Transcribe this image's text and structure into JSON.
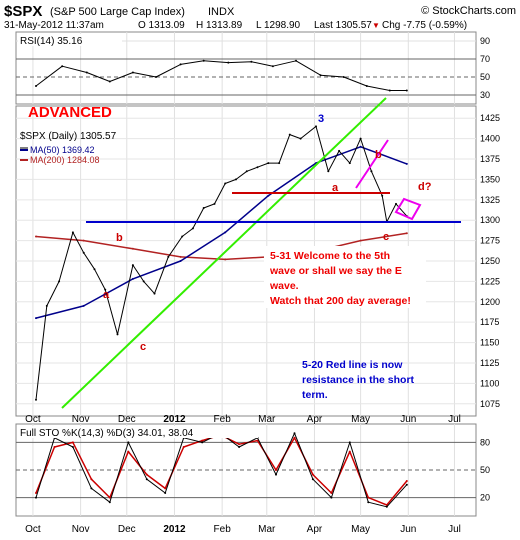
{
  "header": {
    "symbol": "$SPX",
    "name": "(S&P 500 Large Cap Index)",
    "exchange": "INDX",
    "brand": "© StockCharts.com",
    "date_time": "31-May-2012 11:37am",
    "quote": {
      "open": "O 1313.09",
      "high": "H 1313.89",
      "low": "L 1298.90",
      "last": "Last 1305.57",
      "chg": "Chg -7.75 (-0.59%)",
      "chg_arrow": "▼"
    }
  },
  "colors": {
    "price": "#000000",
    "ma50": "#00008b",
    "ma200": "#b22222",
    "trend_green": "#33ee00",
    "support_blue": "#0000cc",
    "resist_red": "#cc0000",
    "wedge_magenta": "#ee00ee",
    "sto_k": "#000000",
    "sto_d": "#cc0000",
    "rsi": "#000000"
  },
  "annotations": {
    "advanced": "ADVANCED",
    "wave_labels": [
      "a",
      "b",
      "c",
      "3",
      "a",
      "b",
      "c",
      "d?"
    ],
    "note1": [
      "5-31 Welcome to the 5th",
      "wave or shall we say the E",
      "wave.",
      "Watch that 200 day average!"
    ],
    "note2": [
      "5-20 Red line is now",
      "resistance in the short",
      "term."
    ]
  },
  "chart_data": [
    {
      "type": "line",
      "title": "RSI(14) 35.16",
      "ylim": [
        20,
        100
      ],
      "ticks": [
        90,
        70,
        50,
        30
      ],
      "reference_lines": [
        70,
        50,
        30
      ],
      "x": [
        "2011-10-03",
        "2011-10-20",
        "2011-11-05",
        "2011-11-20",
        "2011-12-05",
        "2011-12-20",
        "2012-01-05",
        "2012-01-20",
        "2012-02-05",
        "2012-02-20",
        "2012-03-05",
        "2012-03-20",
        "2012-04-05",
        "2012-04-20",
        "2012-05-05",
        "2012-05-20",
        "2012-05-31"
      ],
      "values": [
        40,
        62,
        55,
        45,
        55,
        50,
        64,
        68,
        66,
        67,
        62,
        68,
        52,
        50,
        40,
        35,
        35
      ]
    },
    {
      "type": "line",
      "title": "$SPX (Daily) 1305.57",
      "series": [
        {
          "name": "$SPX (Daily) 1305.57",
          "x": [
            "2011-10-03",
            "2011-10-10",
            "2011-10-18",
            "2011-10-27",
            "2011-11-03",
            "2011-11-10",
            "2011-11-17",
            "2011-11-25",
            "2011-12-05",
            "2011-12-12",
            "2011-12-19",
            "2011-12-28",
            "2012-01-06",
            "2012-01-13",
            "2012-01-20",
            "2012-01-27",
            "2012-02-03",
            "2012-02-10",
            "2012-02-17",
            "2012-02-24",
            "2012-03-02",
            "2012-03-09",
            "2012-03-16",
            "2012-03-23",
            "2012-04-02",
            "2012-04-10",
            "2012-04-17",
            "2012-04-24",
            "2012-05-01",
            "2012-05-08",
            "2012-05-15",
            "2012-05-18",
            "2012-05-24",
            "2012-05-31"
          ],
          "values": [
            1080,
            1195,
            1225,
            1285,
            1260,
            1240,
            1215,
            1160,
            1245,
            1225,
            1210,
            1255,
            1280,
            1290,
            1315,
            1320,
            1345,
            1350,
            1360,
            1365,
            1370,
            1370,
            1405,
            1400,
            1415,
            1360,
            1385,
            1370,
            1400,
            1360,
            1330,
            1298,
            1320,
            1305
          ]
        },
        {
          "name": "MA(50) 1369.42",
          "x": [
            "2011-10-03",
            "2011-11-03",
            "2011-12-05",
            "2012-01-05",
            "2012-02-03",
            "2012-03-02",
            "2012-04-02",
            "2012-05-01",
            "2012-05-31"
          ],
          "values": [
            1180,
            1195,
            1228,
            1250,
            1285,
            1330,
            1370,
            1390,
            1369
          ]
        },
        {
          "name": "MA(200) 1284.08",
          "x": [
            "2011-10-03",
            "2011-11-03",
            "2011-12-05",
            "2012-01-05",
            "2012-02-03",
            "2012-03-02",
            "2012-04-02",
            "2012-05-01",
            "2012-05-31"
          ],
          "values": [
            1280,
            1275,
            1265,
            1255,
            1252,
            1255,
            1262,
            1275,
            1284
          ]
        }
      ],
      "ylim": [
        1060,
        1440
      ],
      "y_ticks": [
        1425,
        1400,
        1375,
        1350,
        1325,
        1300,
        1275,
        1250,
        1225,
        1200,
        1175,
        1150,
        1125,
        1100,
        1075
      ],
      "x_ticks": [
        "Oct",
        "Nov",
        "Dec",
        "2012",
        "Feb",
        "Mar",
        "Apr",
        "May",
        "Jun",
        "Jul"
      ],
      "horizontal_levels": {
        "support": 1300,
        "resistance": 1340
      },
      "legend_position": "top-left"
    },
    {
      "type": "line",
      "title": "Full STO %K(14,3) %D(3) 34.01, 38.04",
      "ylim": [
        0,
        100
      ],
      "ticks": [
        80,
        50,
        20
      ],
      "reference_lines": [
        80,
        50,
        20
      ],
      "series": [
        {
          "name": "%K",
          "x": [
            "2011-10-03",
            "2011-10-15",
            "2011-10-27",
            "2011-11-08",
            "2011-11-20",
            "2011-12-02",
            "2011-12-14",
            "2011-12-26",
            "2012-01-07",
            "2012-01-19",
            "2012-01-31",
            "2012-02-12",
            "2012-02-24",
            "2012-03-07",
            "2012-03-19",
            "2012-03-31",
            "2012-04-12",
            "2012-04-24",
            "2012-05-06",
            "2012-05-18",
            "2012-05-31"
          ],
          "values": [
            20,
            85,
            75,
            30,
            15,
            80,
            40,
            25,
            85,
            80,
            90,
            75,
            85,
            45,
            90,
            40,
            20,
            80,
            15,
            10,
            34
          ]
        },
        {
          "name": "%D",
          "x": [
            "2011-10-03",
            "2011-10-15",
            "2011-10-27",
            "2011-11-08",
            "2011-11-20",
            "2011-12-02",
            "2011-12-14",
            "2011-12-26",
            "2012-01-07",
            "2012-01-19",
            "2012-01-31",
            "2012-02-12",
            "2012-02-24",
            "2012-03-07",
            "2012-03-19",
            "2012-03-31",
            "2012-04-12",
            "2012-04-24",
            "2012-05-06",
            "2012-05-18",
            "2012-05-31"
          ],
          "values": [
            25,
            75,
            80,
            40,
            20,
            70,
            45,
            30,
            75,
            82,
            88,
            78,
            82,
            50,
            85,
            45,
            25,
            70,
            20,
            12,
            38
          ]
        }
      ],
      "x_ticks": [
        "Oct",
        "Nov",
        "Dec",
        "2012",
        "Feb",
        "Mar",
        "Apr",
        "May",
        "Jun",
        "Jul"
      ]
    }
  ]
}
